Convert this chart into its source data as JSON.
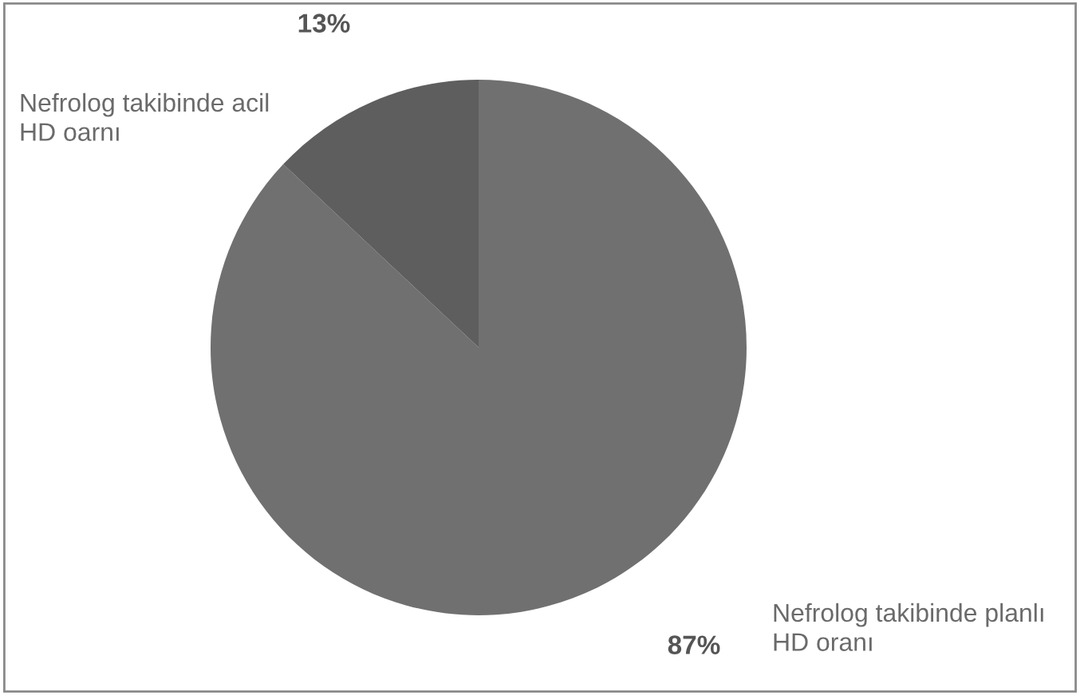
{
  "chart_data": {
    "type": "pie",
    "categories": [
      "Nefrolog takibinde planlı HD oranı",
      "Nefrolog takibinde acil HD oarnı"
    ],
    "values": [
      87,
      13
    ],
    "value_labels": [
      "87%",
      "13%"
    ],
    "colors": [
      "#707070",
      "#5e5e5e"
    ],
    "legend": false
  }
}
